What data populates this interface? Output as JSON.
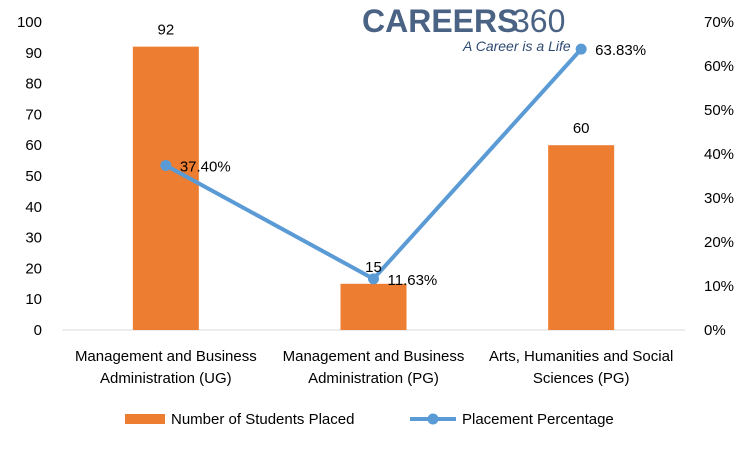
{
  "logo": {
    "brand": "CAREERS",
    "number": "360",
    "tagline": "A Career is a Life"
  },
  "chart_data": {
    "type": "bar",
    "categories": [
      [
        "Management and Business",
        "Administration (UG)"
      ],
      [
        "Management and Business",
        "Administration (PG)"
      ],
      [
        "Arts, Humanities and Social",
        "Sciences (PG)"
      ]
    ],
    "series": [
      {
        "name": "Number of Students Placed",
        "type": "bar",
        "axis": "left",
        "values": [
          92,
          15,
          60
        ],
        "labels": [
          "92",
          "15",
          "60"
        ],
        "color": "#ed7d31"
      },
      {
        "name": "Placement Percentage",
        "type": "line",
        "axis": "right",
        "values": [
          37.4,
          11.63,
          63.83
        ],
        "labels": [
          "37.40%",
          "11.63%",
          "63.83%"
        ],
        "color": "#5b9bd5"
      }
    ],
    "y_left": {
      "min": 0,
      "max": 100,
      "step": 10,
      "ticks": [
        "0",
        "10",
        "20",
        "30",
        "40",
        "50",
        "60",
        "70",
        "80",
        "90",
        "100"
      ]
    },
    "y_right": {
      "min": 0,
      "max": 70,
      "step": 10,
      "ticks": [
        "0%",
        "10%",
        "20%",
        "30%",
        "40%",
        "50%",
        "60%",
        "70%"
      ]
    },
    "grid": false,
    "legend": "bottom"
  }
}
